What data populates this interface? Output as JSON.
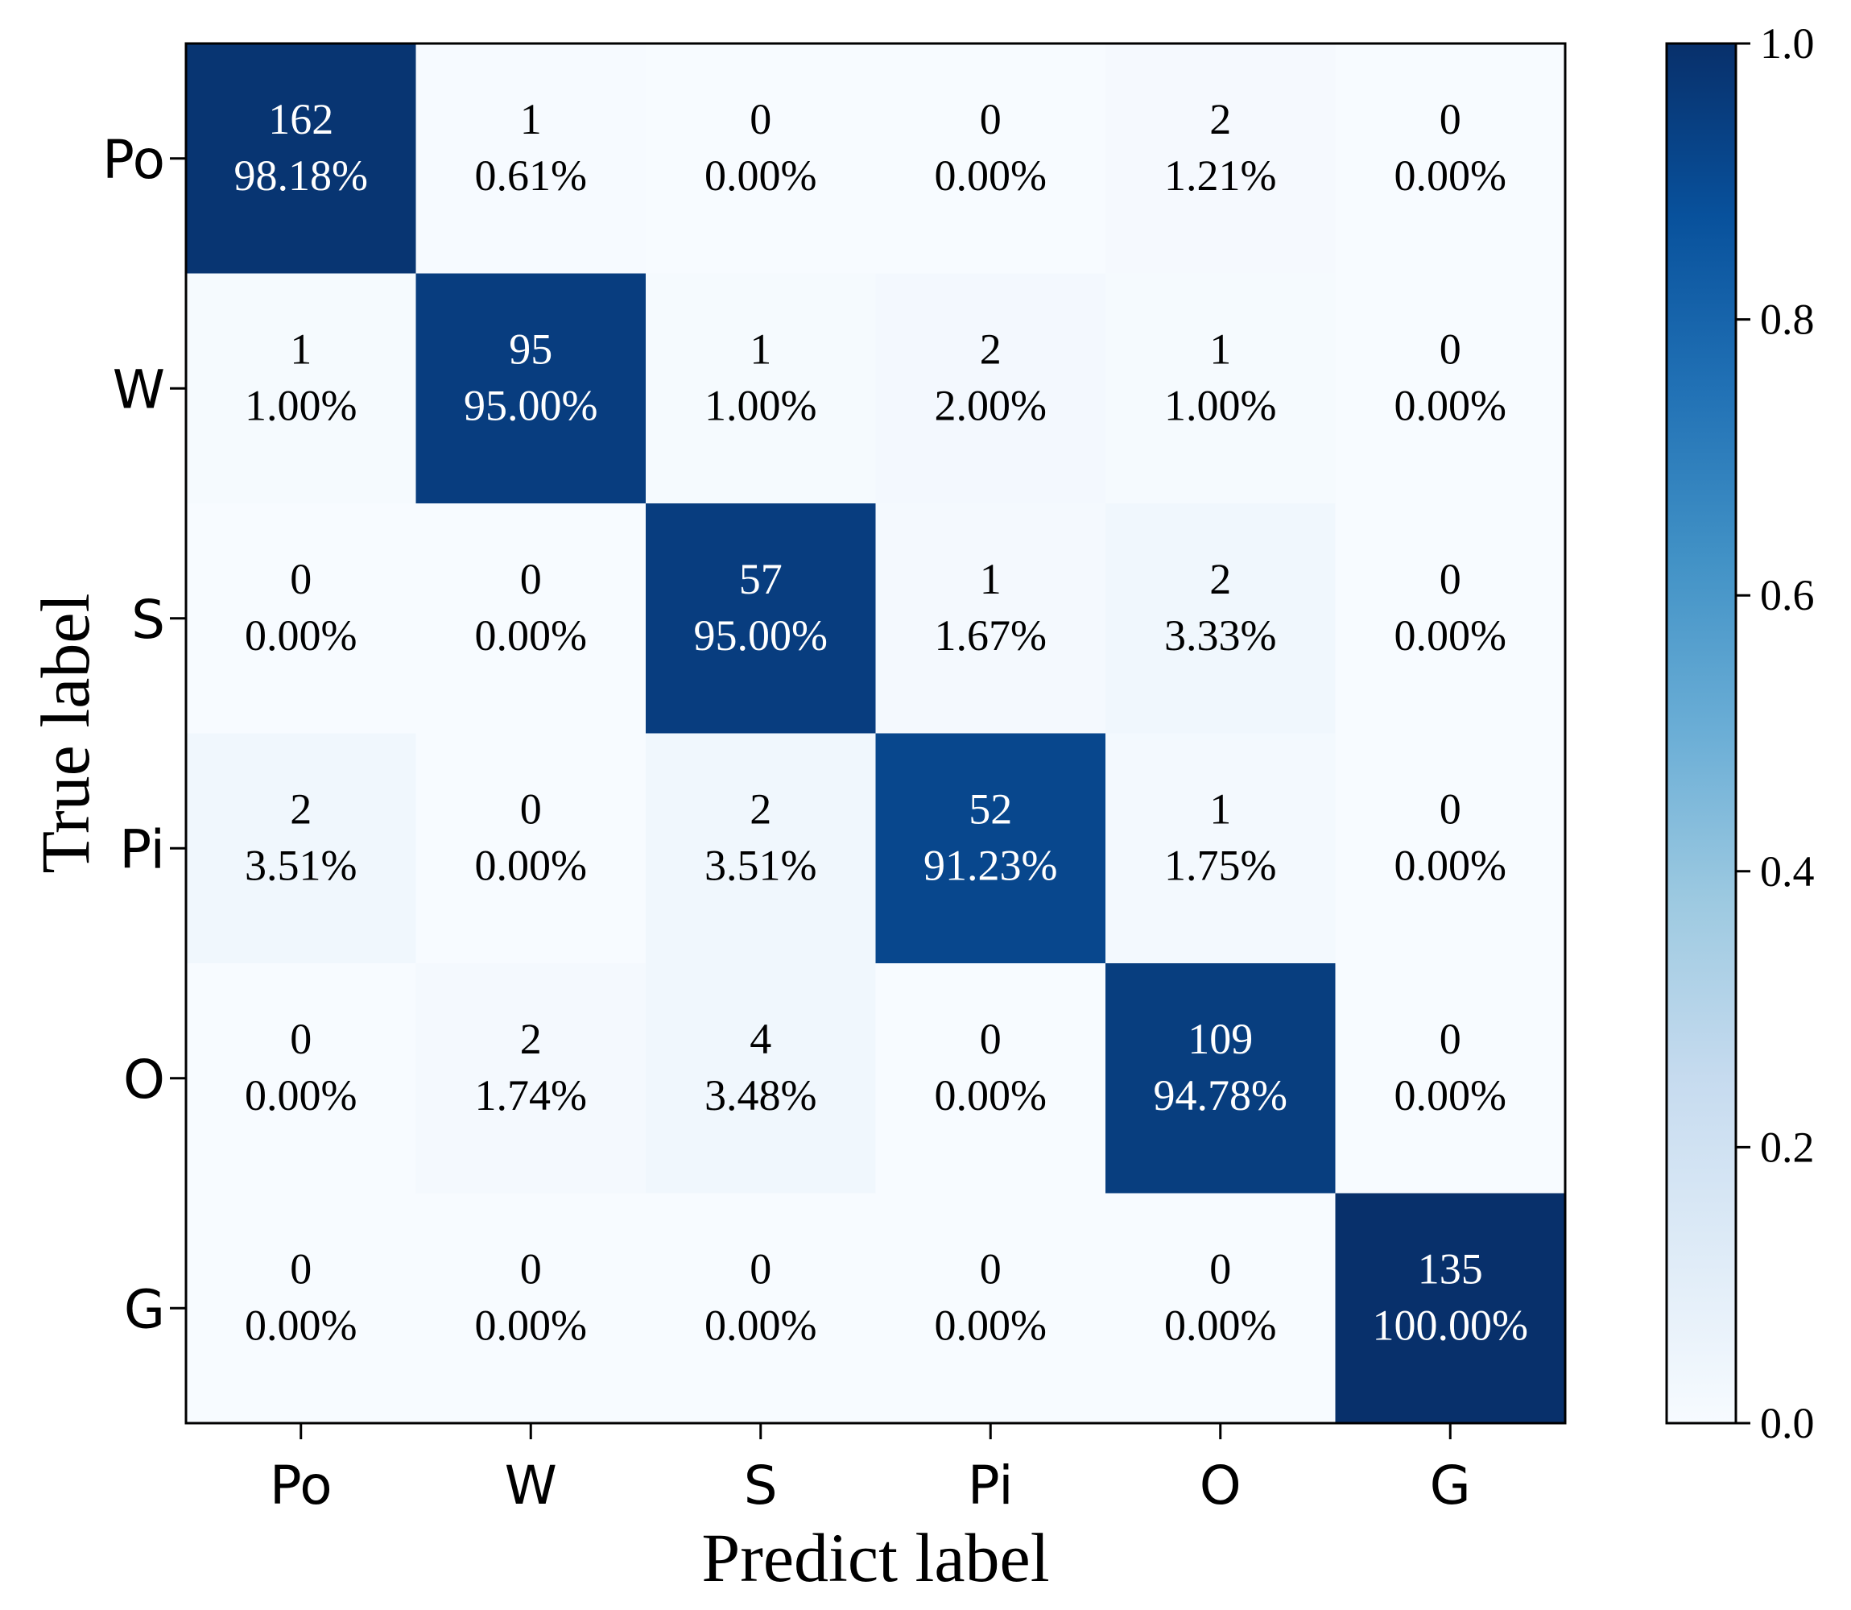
{
  "chart_data": {
    "type": "heatmap",
    "xlabel": "Predict label",
    "ylabel": "True label",
    "x_categories": [
      "Po",
      "W",
      "S",
      "Pi",
      "O",
      "G"
    ],
    "y_categories": [
      "Po",
      "W",
      "S",
      "Pi",
      "O",
      "G"
    ],
    "counts": [
      [
        162,
        1,
        0,
        0,
        2,
        0
      ],
      [
        1,
        95,
        1,
        2,
        1,
        0
      ],
      [
        0,
        0,
        57,
        1,
        2,
        0
      ],
      [
        2,
        0,
        2,
        52,
        1,
        0
      ],
      [
        0,
        2,
        4,
        0,
        109,
        0
      ],
      [
        0,
        0,
        0,
        0,
        0,
        135
      ]
    ],
    "percentages": [
      [
        "98.18%",
        "0.61%",
        "0.00%",
        "0.00%",
        "1.21%",
        "0.00%"
      ],
      [
        "1.00%",
        "95.00%",
        "1.00%",
        "2.00%",
        "1.00%",
        "0.00%"
      ],
      [
        "0.00%",
        "0.00%",
        "95.00%",
        "1.67%",
        "3.33%",
        "0.00%"
      ],
      [
        "3.51%",
        "0.00%",
        "3.51%",
        "91.23%",
        "1.75%",
        "0.00%"
      ],
      [
        "0.00%",
        "1.74%",
        "3.48%",
        "0.00%",
        "94.78%",
        "0.00%"
      ],
      [
        "0.00%",
        "0.00%",
        "0.00%",
        "0.00%",
        "0.00%",
        "100.00%"
      ]
    ],
    "colorbar": {
      "range": [
        0.0,
        1.0
      ],
      "ticks": [
        0.0,
        0.2,
        0.4,
        0.6,
        0.8,
        1.0
      ],
      "tick_labels": [
        "0.0",
        "0.2",
        "0.4",
        "0.6",
        "0.8",
        "1.0"
      ],
      "colormap": "Blues"
    },
    "grid": false
  }
}
